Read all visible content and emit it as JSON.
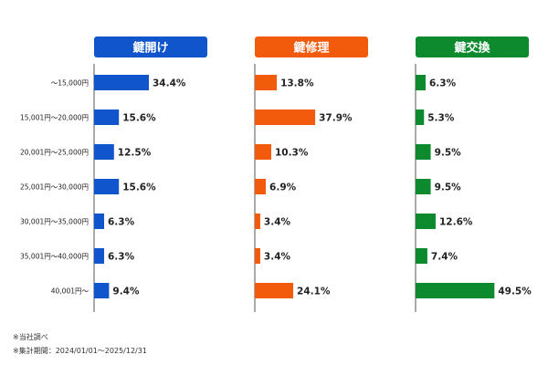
{
  "chart_data": {
    "type": "bar",
    "orientation": "horizontal",
    "categories": [
      "～15,000円",
      "15,001円～20,000円",
      "20,001円～25,000円",
      "25,001円～30,000円",
      "30,001円～35,000円",
      "35,001円～40,000円",
      "40,001円～"
    ],
    "series": [
      {
        "name": "鍵開け",
        "color": "#1155cc",
        "values": [
          34.4,
          15.6,
          12.5,
          15.6,
          6.3,
          6.3,
          9.4
        ],
        "labels": [
          "34.4%",
          "15.6%",
          "12.5%",
          "15.6%",
          "6.3%",
          "6.3%",
          "9.4%"
        ]
      },
      {
        "name": "鍵修理",
        "color": "#f25a0c",
        "values": [
          13.8,
          37.9,
          10.3,
          6.9,
          3.4,
          3.4,
          24.1
        ],
        "labels": [
          "13.8%",
          "37.9%",
          "10.3%",
          "6.9%",
          "3.4%",
          "3.4%",
          "24.1%"
        ]
      },
      {
        "name": "鍵交換",
        "color": "#0e8a2e",
        "values": [
          6.3,
          5.3,
          9.5,
          9.5,
          12.6,
          7.4,
          49.5
        ],
        "labels": [
          "6.3%",
          "5.3%",
          "9.5%",
          "9.5%",
          "12.6%",
          "7.4%",
          "49.5%"
        ]
      }
    ],
    "title": "",
    "xlabel": "",
    "ylabel": "",
    "xlim": [
      0,
      100
    ],
    "grid": false,
    "legend": "none"
  },
  "notes": [
    "※当社調べ",
    "※集計期間：2024/01/01～2025/12/31"
  ]
}
